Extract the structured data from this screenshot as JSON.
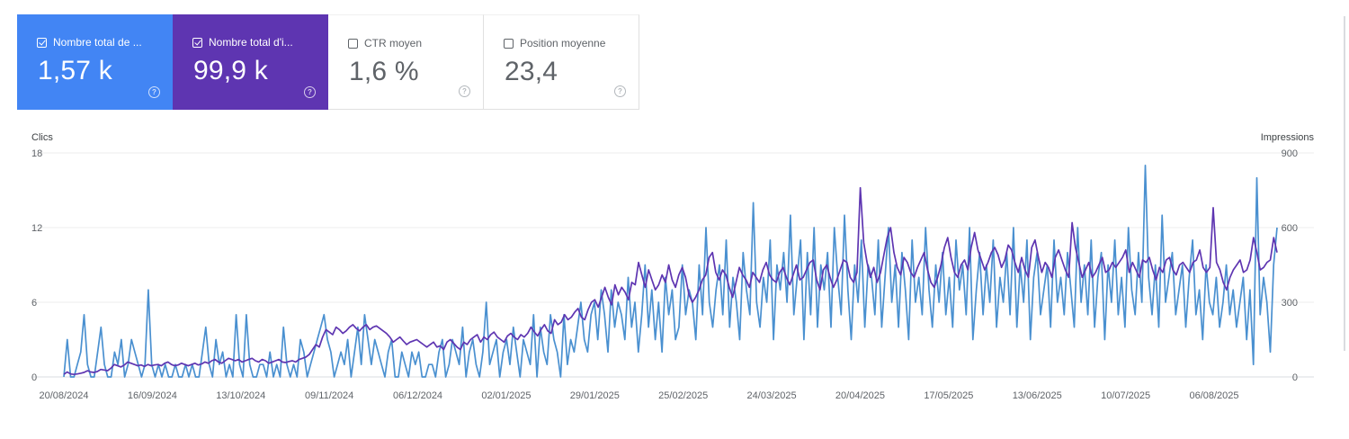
{
  "cards": [
    {
      "label": "Nombre total de ...",
      "value": "1,57 k",
      "checked": true,
      "color": "#4285f4"
    },
    {
      "label": "Nombre total d'i...",
      "value": "99,9 k",
      "checked": true,
      "color": "#5e35b1"
    },
    {
      "label": "CTR moyen",
      "value": "1,6 %",
      "checked": false
    },
    {
      "label": "Position moyenne",
      "value": "23,4",
      "checked": false
    }
  ],
  "help_glyph": "?",
  "chart_data": {
    "type": "line",
    "left_axis_label": "Clics",
    "right_axis_label": "Impressions",
    "left_ticks": [
      "18",
      "12",
      "6",
      "0"
    ],
    "right_ticks": [
      "900",
      "600",
      "300",
      "0"
    ],
    "left_range": [
      0,
      18
    ],
    "right_range": [
      0,
      900
    ],
    "x_ticks": [
      "20/08/2024",
      "16/09/2024",
      "13/10/2024",
      "09/11/2024",
      "06/12/2024",
      "02/01/2025",
      "29/01/2025",
      "25/02/2025",
      "24/03/2025",
      "20/04/2025",
      "17/05/2025",
      "13/06/2025",
      "10/07/2025",
      "06/08/2025"
    ],
    "grid": true,
    "series": [
      {
        "name": "Clics",
        "axis": "left",
        "color": "#4a90d0",
        "values": [
          0,
          3,
          0,
          0,
          1,
          2,
          5,
          1,
          0,
          0,
          2,
          4,
          1,
          0,
          0,
          2,
          1,
          3,
          0,
          1,
          3,
          2,
          1,
          0,
          1,
          7,
          1,
          0,
          1,
          0,
          1,
          0,
          0,
          1,
          0,
          0,
          1,
          0,
          1,
          0,
          0,
          2,
          4,
          1,
          0,
          3,
          1,
          2,
          0,
          1,
          0,
          5,
          1,
          0,
          5,
          1,
          0,
          0,
          1,
          1,
          0,
          2,
          0,
          1,
          0,
          4,
          1,
          0,
          1,
          0,
          3,
          2,
          0,
          1,
          2,
          3,
          4,
          5,
          3,
          2,
          0,
          1,
          2,
          1,
          3,
          0,
          2,
          4,
          1,
          5,
          3,
          1,
          3,
          2,
          1,
          0,
          2,
          3,
          0,
          0,
          2,
          1,
          0,
          2,
          1,
          2,
          0,
          0,
          1,
          1,
          0,
          2,
          3,
          0,
          1,
          3,
          2,
          1,
          4,
          0,
          2,
          3,
          1,
          0,
          2,
          6,
          1,
          2,
          3,
          0,
          2,
          3,
          1,
          4,
          2,
          0,
          3,
          2,
          1,
          5,
          0,
          4,
          2,
          1,
          5,
          3,
          2,
          0,
          5,
          1,
          3,
          2,
          4,
          6,
          3,
          2,
          5,
          6,
          3,
          7,
          5,
          2,
          7,
          4,
          6,
          5,
          3,
          8,
          4,
          6,
          2,
          5,
          9,
          4,
          7,
          3,
          6,
          2,
          8,
          5,
          7,
          3,
          4,
          9,
          5,
          7,
          6,
          3,
          9,
          5,
          12,
          6,
          4,
          7,
          9,
          5,
          11,
          4,
          8,
          6,
          3,
          10,
          7,
          5,
          14,
          6,
          4,
          8,
          6,
          11,
          3,
          9,
          7,
          10,
          6,
          13,
          5,
          8,
          11,
          3,
          10,
          5,
          12,
          4,
          9,
          7,
          10,
          4,
          12,
          8,
          5,
          13,
          7,
          3,
          9,
          6,
          11,
          4,
          9,
          8,
          5,
          11,
          4,
          8,
          12,
          6,
          9,
          4,
          10,
          7,
          3,
          11,
          6,
          8,
          5,
          12,
          7,
          4,
          9,
          6,
          10,
          5,
          8,
          4,
          11,
          7,
          9,
          5,
          12,
          3,
          7,
          10,
          5,
          9,
          6,
          11,
          4,
          8,
          6,
          10,
          5,
          12,
          4,
          9,
          6,
          11,
          3,
          8,
          10,
          5,
          7,
          9,
          4,
          11,
          6,
          8,
          5,
          10,
          7,
          4,
          12,
          6,
          9,
          5,
          11,
          4,
          8,
          10,
          3,
          9,
          6,
          11,
          5,
          8,
          4,
          12,
          7,
          5,
          10,
          6,
          17,
          8,
          5,
          9,
          4,
          13,
          6,
          8,
          10,
          5,
          7,
          9,
          4,
          8,
          11,
          5,
          7,
          3,
          9,
          6,
          5,
          8,
          4,
          6,
          9,
          5,
          7,
          4,
          6,
          8,
          3,
          7,
          1,
          16,
          5,
          8,
          6,
          2,
          9,
          12
        ]
      },
      {
        "name": "Impressions",
        "axis": "right",
        "color": "#5e35b1",
        "values": [
          10,
          20,
          12,
          10,
          12,
          15,
          18,
          25,
          20,
          18,
          22,
          30,
          28,
          25,
          35,
          50,
          45,
          40,
          48,
          60,
          55,
          50,
          45,
          48,
          42,
          50,
          45,
          48,
          50,
          45,
          55,
          60,
          50,
          45,
          48,
          55,
          50,
          45,
          50,
          55,
          48,
          52,
          60,
          55,
          65,
          70,
          60,
          55,
          65,
          75,
          70,
          65,
          70,
          60,
          65,
          70,
          75,
          65,
          60,
          70,
          65,
          55,
          60,
          65,
          70,
          60,
          58,
          62,
          65,
          60,
          70,
          75,
          80,
          90,
          110,
          130,
          120,
          160,
          190,
          180,
          170,
          200,
          190,
          175,
          185,
          200,
          210,
          195,
          185,
          200,
          210,
          190,
          200,
          205,
          195,
          185,
          175,
          160,
          140,
          150,
          160,
          145,
          130,
          140,
          145,
          150,
          140,
          130,
          120,
          130,
          140,
          120,
          125,
          110,
          140,
          150,
          135,
          120,
          110,
          140,
          130,
          150,
          160,
          170,
          140,
          160,
          150,
          170,
          180,
          160,
          150,
          140,
          165,
          175,
          160,
          150,
          170,
          160,
          175,
          200,
          180,
          165,
          190,
          210,
          185,
          175,
          230,
          210,
          220,
          250,
          230,
          240,
          260,
          275,
          240,
          230,
          270,
          300,
          310,
          280,
          320,
          360,
          320,
          290,
          370,
          330,
          360,
          340,
          310,
          380,
          370,
          460,
          410,
          360,
          430,
          390,
          350,
          370,
          410,
          380,
          450,
          390,
          360,
          410,
          440,
          400,
          330,
          300,
          320,
          350,
          390,
          410,
          480,
          500,
          420,
          390,
          430,
          410,
          360,
          320,
          380,
          440,
          410,
          390,
          360,
          420,
          400,
          380,
          430,
          460,
          410,
          390,
          380,
          420,
          440,
          400,
          370,
          410,
          450,
          390,
          400,
          430,
          460,
          470,
          390,
          350,
          430,
          450,
          400,
          360,
          390,
          430,
          470,
          460,
          400,
          380,
          420,
          760,
          540,
          460,
          400,
          440,
          380,
          420,
          490,
          560,
          600,
          500,
          440,
          410,
          480,
          460,
          420,
          400,
          440,
          470,
          500,
          430,
          380,
          360,
          400,
          450,
          520,
          560,
          480,
          420,
          400,
          450,
          470,
          430,
          520,
          580,
          510,
          470,
          430,
          460,
          500,
          520,
          490,
          440,
          470,
          530,
          510,
          460,
          420,
          480,
          430,
          400,
          520,
          550,
          480,
          420,
          460,
          440,
          400,
          480,
          510,
          470,
          430,
          400,
          620,
          520,
          460,
          400,
          430,
          460,
          400,
          420,
          450,
          480,
          420,
          430,
          460,
          440,
          460,
          480,
          510,
          420,
          460,
          430,
          400,
          470,
          460,
          480,
          430,
          390,
          440,
          420,
          470,
          480,
          430,
          410,
          450,
          460,
          440,
          420,
          460,
          470,
          510,
          440,
          420,
          440,
          680,
          460,
          430,
          380,
          350,
          400,
          430,
          450,
          470,
          420,
          430,
          470,
          560,
          500,
          430,
          440,
          460,
          470,
          560,
          500
        ]
      }
    ]
  }
}
